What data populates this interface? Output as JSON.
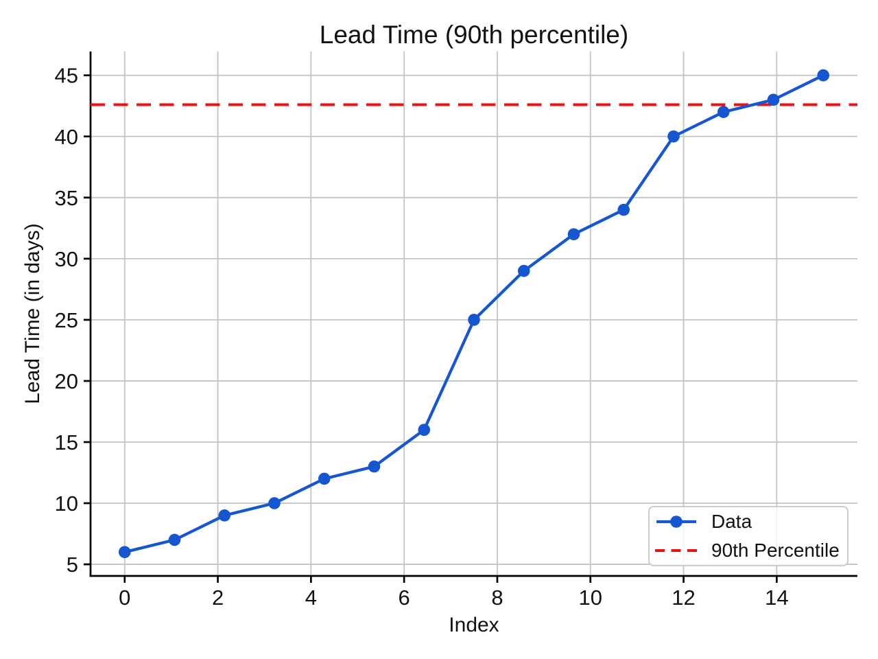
{
  "chart_data": {
    "type": "line",
    "title": "Lead Time (90th percentile)",
    "xlabel": "Index",
    "ylabel": "Lead Time (in days)",
    "x": [
      0,
      1.0714,
      2.1429,
      3.2143,
      4.2857,
      5.3571,
      6.4286,
      7.5,
      8.5714,
      9.6429,
      10.7143,
      11.7857,
      12.8571,
      13.9286,
      15
    ],
    "y": [
      6,
      7,
      9,
      10,
      12,
      13,
      16,
      25,
      29,
      32,
      34,
      40,
      42,
      43,
      45
    ],
    "series_label": "Data",
    "reference_line": {
      "label": "90th Percentile",
      "value": 42.6,
      "style": "dashed"
    },
    "xticks": [
      0,
      2,
      4,
      6,
      8,
      10,
      12,
      14
    ],
    "yticks": [
      5,
      10,
      15,
      20,
      25,
      30,
      35,
      40,
      45
    ],
    "xlim": [
      -0.733,
      15.733
    ],
    "ylim": [
      4.05,
      46.95
    ],
    "grid": true,
    "legend": {
      "position": "lower right",
      "items": [
        {
          "label": "Data",
          "marker": "circle-line"
        },
        {
          "label": "90th Percentile",
          "marker": "dashed-line"
        }
      ]
    },
    "colors": {
      "line": "#1657d1",
      "percentile": "#ee1111",
      "grid": "#c3c3c3",
      "axis": "#000000",
      "text": "#111111"
    }
  }
}
